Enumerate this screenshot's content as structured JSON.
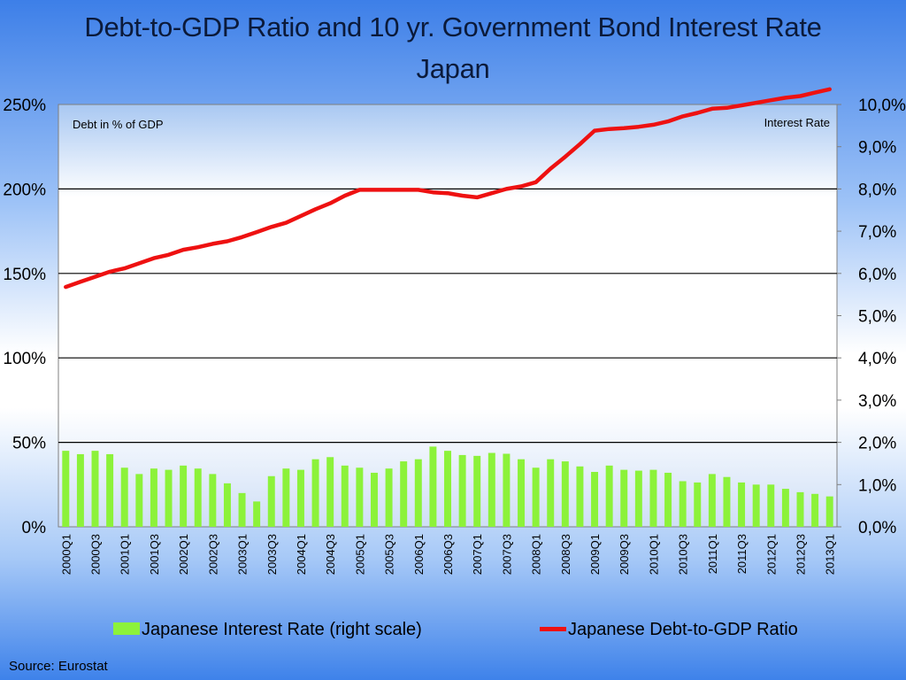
{
  "chart_data": {
    "type": "bar+line",
    "title": "Debt-to-GDP Ratio and 10 yr. Government Bond Interest Rate",
    "subtitle": "Japan",
    "left_axis_note": "Debt in % of GDP",
    "right_axis_note": "Interest Rate",
    "left_ticks": [
      "0%",
      "50%",
      "100%",
      "150%",
      "200%",
      "250%"
    ],
    "left_ylim": [
      0,
      250
    ],
    "right_ticks": [
      "0,0%",
      "1,0%",
      "2,0%",
      "3,0%",
      "4,0%",
      "5,0%",
      "6,0%",
      "7,0%",
      "8,0%",
      "9,0%",
      "10,0%"
    ],
    "right_ylim": [
      0,
      10
    ],
    "categories": [
      "2000Q1",
      "2000Q2",
      "2000Q3",
      "2000Q4",
      "2001Q1",
      "2001Q2",
      "2001Q3",
      "2001Q4",
      "2002Q1",
      "2002Q2",
      "2002Q3",
      "2002Q4",
      "2003Q1",
      "2003Q2",
      "2003Q3",
      "2003Q4",
      "2004Q1",
      "2004Q2",
      "2004Q3",
      "2004Q4",
      "2005Q1",
      "2005Q2",
      "2005Q3",
      "2005Q4",
      "2006Q1",
      "2006Q2",
      "2006Q3",
      "2006Q4",
      "2007Q1",
      "2007Q2",
      "2007Q3",
      "2007Q4",
      "2008Q1",
      "2008Q2",
      "2008Q3",
      "2008Q4",
      "2009Q1",
      "2009Q2",
      "2009Q3",
      "2009Q4",
      "2010Q1",
      "2010Q2",
      "2010Q3",
      "2010Q4",
      "2011Q1",
      "2011Q2",
      "2011Q3",
      "2011Q4",
      "2012Q1",
      "2012Q2",
      "2012Q3",
      "2012Q4",
      "2013Q1"
    ],
    "shown_x_labels": [
      "2000Q1",
      "2000Q3",
      "2001Q1",
      "2001Q3",
      "2002Q1",
      "2002Q3",
      "2003Q1",
      "2003Q3",
      "2004Q1",
      "2004Q3",
      "2005Q1",
      "2005Q3",
      "2006Q1",
      "2006Q3",
      "2007Q1",
      "2007Q3",
      "2008Q1",
      "2008Q3",
      "2009Q1",
      "2009Q3",
      "2010Q1",
      "2010Q3",
      "2011Q1",
      "2011Q3",
      "2012Q1",
      "2012Q3",
      "2013Q1"
    ],
    "series": [
      {
        "name": "Japanese Interest Rate  (right scale)",
        "type": "bar",
        "axis": "right",
        "color": "#8cf23a",
        "values": [
          1.8,
          1.72,
          1.8,
          1.72,
          1.4,
          1.25,
          1.38,
          1.35,
          1.45,
          1.38,
          1.25,
          1.03,
          0.8,
          0.6,
          1.2,
          1.38,
          1.35,
          1.6,
          1.65,
          1.45,
          1.4,
          1.28,
          1.38,
          1.55,
          1.6,
          1.9,
          1.8,
          1.7,
          1.68,
          1.75,
          1.73,
          1.6,
          1.4,
          1.6,
          1.55,
          1.43,
          1.3,
          1.45,
          1.35,
          1.33,
          1.35,
          1.28,
          1.08,
          1.05,
          1.25,
          1.18,
          1.05,
          1.0,
          1.0,
          0.9,
          0.82,
          0.78,
          0.72
        ]
      },
      {
        "name": "Japanese Debt-to-GDP Ratio",
        "type": "line",
        "axis": "left",
        "color": "#ee1111",
        "values": [
          142,
          145,
          148,
          151,
          153,
          156,
          159,
          161,
          164,
          165.5,
          167.5,
          169,
          171.5,
          174.5,
          177.5,
          180,
          184,
          188,
          191.5,
          196,
          199.5,
          199.5,
          199.5,
          199.5,
          199.5,
          198,
          197.5,
          196,
          195,
          197.5,
          200,
          201.5,
          204,
          212,
          219,
          226.5,
          234.5,
          235.5,
          236,
          236.8,
          238,
          240,
          243,
          245,
          247.5,
          248,
          249.5,
          251,
          252.5,
          254,
          255,
          257,
          259
        ]
      }
    ]
  },
  "legend": {
    "bar_label": "Japanese Interest Rate  (right scale)",
    "line_label": "Japanese Debt-to-GDP Ratio"
  },
  "source": "Source: Eurostat"
}
